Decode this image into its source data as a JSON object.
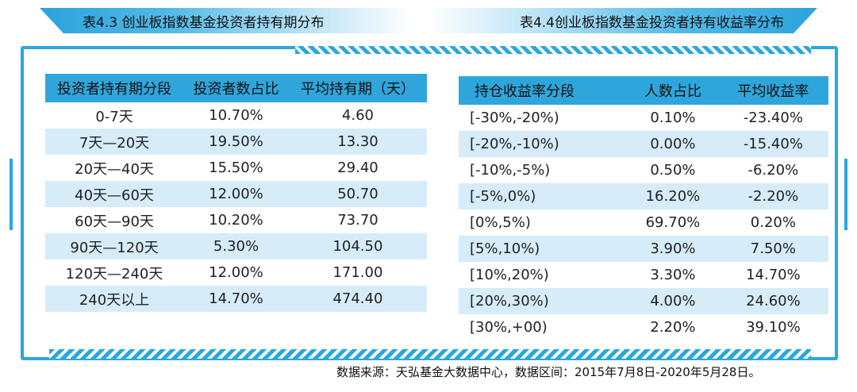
{
  "left_table": {
    "title": "表4.3 创业板指数基金投资者持有期分布",
    "headers": [
      "投资者持有期分段",
      "投资者数占比",
      "平均持有期（天）"
    ],
    "rows": [
      [
        "0-7天",
        "10.70%",
        "4.60"
      ],
      [
        "7天—20天",
        "19.50%",
        "13.30"
      ],
      [
        "20天—40天",
        "15.50%",
        "29.40"
      ],
      [
        "40天—60天",
        "12.00%",
        "50.70"
      ],
      [
        "60天—90天",
        "10.20%",
        "73.70"
      ],
      [
        "90天—120天",
        "5.30%",
        "104.50"
      ],
      [
        "120天—240天",
        "12.00%",
        "171.00"
      ],
      [
        "240天以上",
        "14.70%",
        "474.40"
      ]
    ]
  },
  "right_table": {
    "title": "表4.4创业板指数基金投资者持有收益率分布",
    "headers": [
      "持仓收益率分段",
      "人数占比",
      "平均收益率"
    ],
    "rows": [
      [
        "[-30%,-20%)",
        "0.10%",
        "-23.40%"
      ],
      [
        "[-20%,-10%)",
        "0.00%",
        "-15.40%"
      ],
      [
        "[-10%,-5%)",
        "0.50%",
        "-6.20%"
      ],
      [
        "[-5%,0%)",
        "16.20%",
        "-2.20%"
      ],
      [
        "[0%,5%)",
        "69.70%",
        "0.20%"
      ],
      [
        "[5%,10%)",
        "3.90%",
        "7.50%"
      ],
      [
        "[10%,20%)",
        "3.30%",
        "14.70%"
      ],
      [
        "[20%,30%)",
        "4.00%",
        "24.60%"
      ],
      [
        "[30%,+00)",
        "2.20%",
        "39.10%"
      ]
    ]
  },
  "source_note": "数据来源：天弘基金大数据中心，数据区间：2015年7月8日-2020年5月28日。",
  "colors": {
    "accent": "#2aa7df",
    "row_alt": "#d6ecf8",
    "header": "#2ea6dc"
  }
}
